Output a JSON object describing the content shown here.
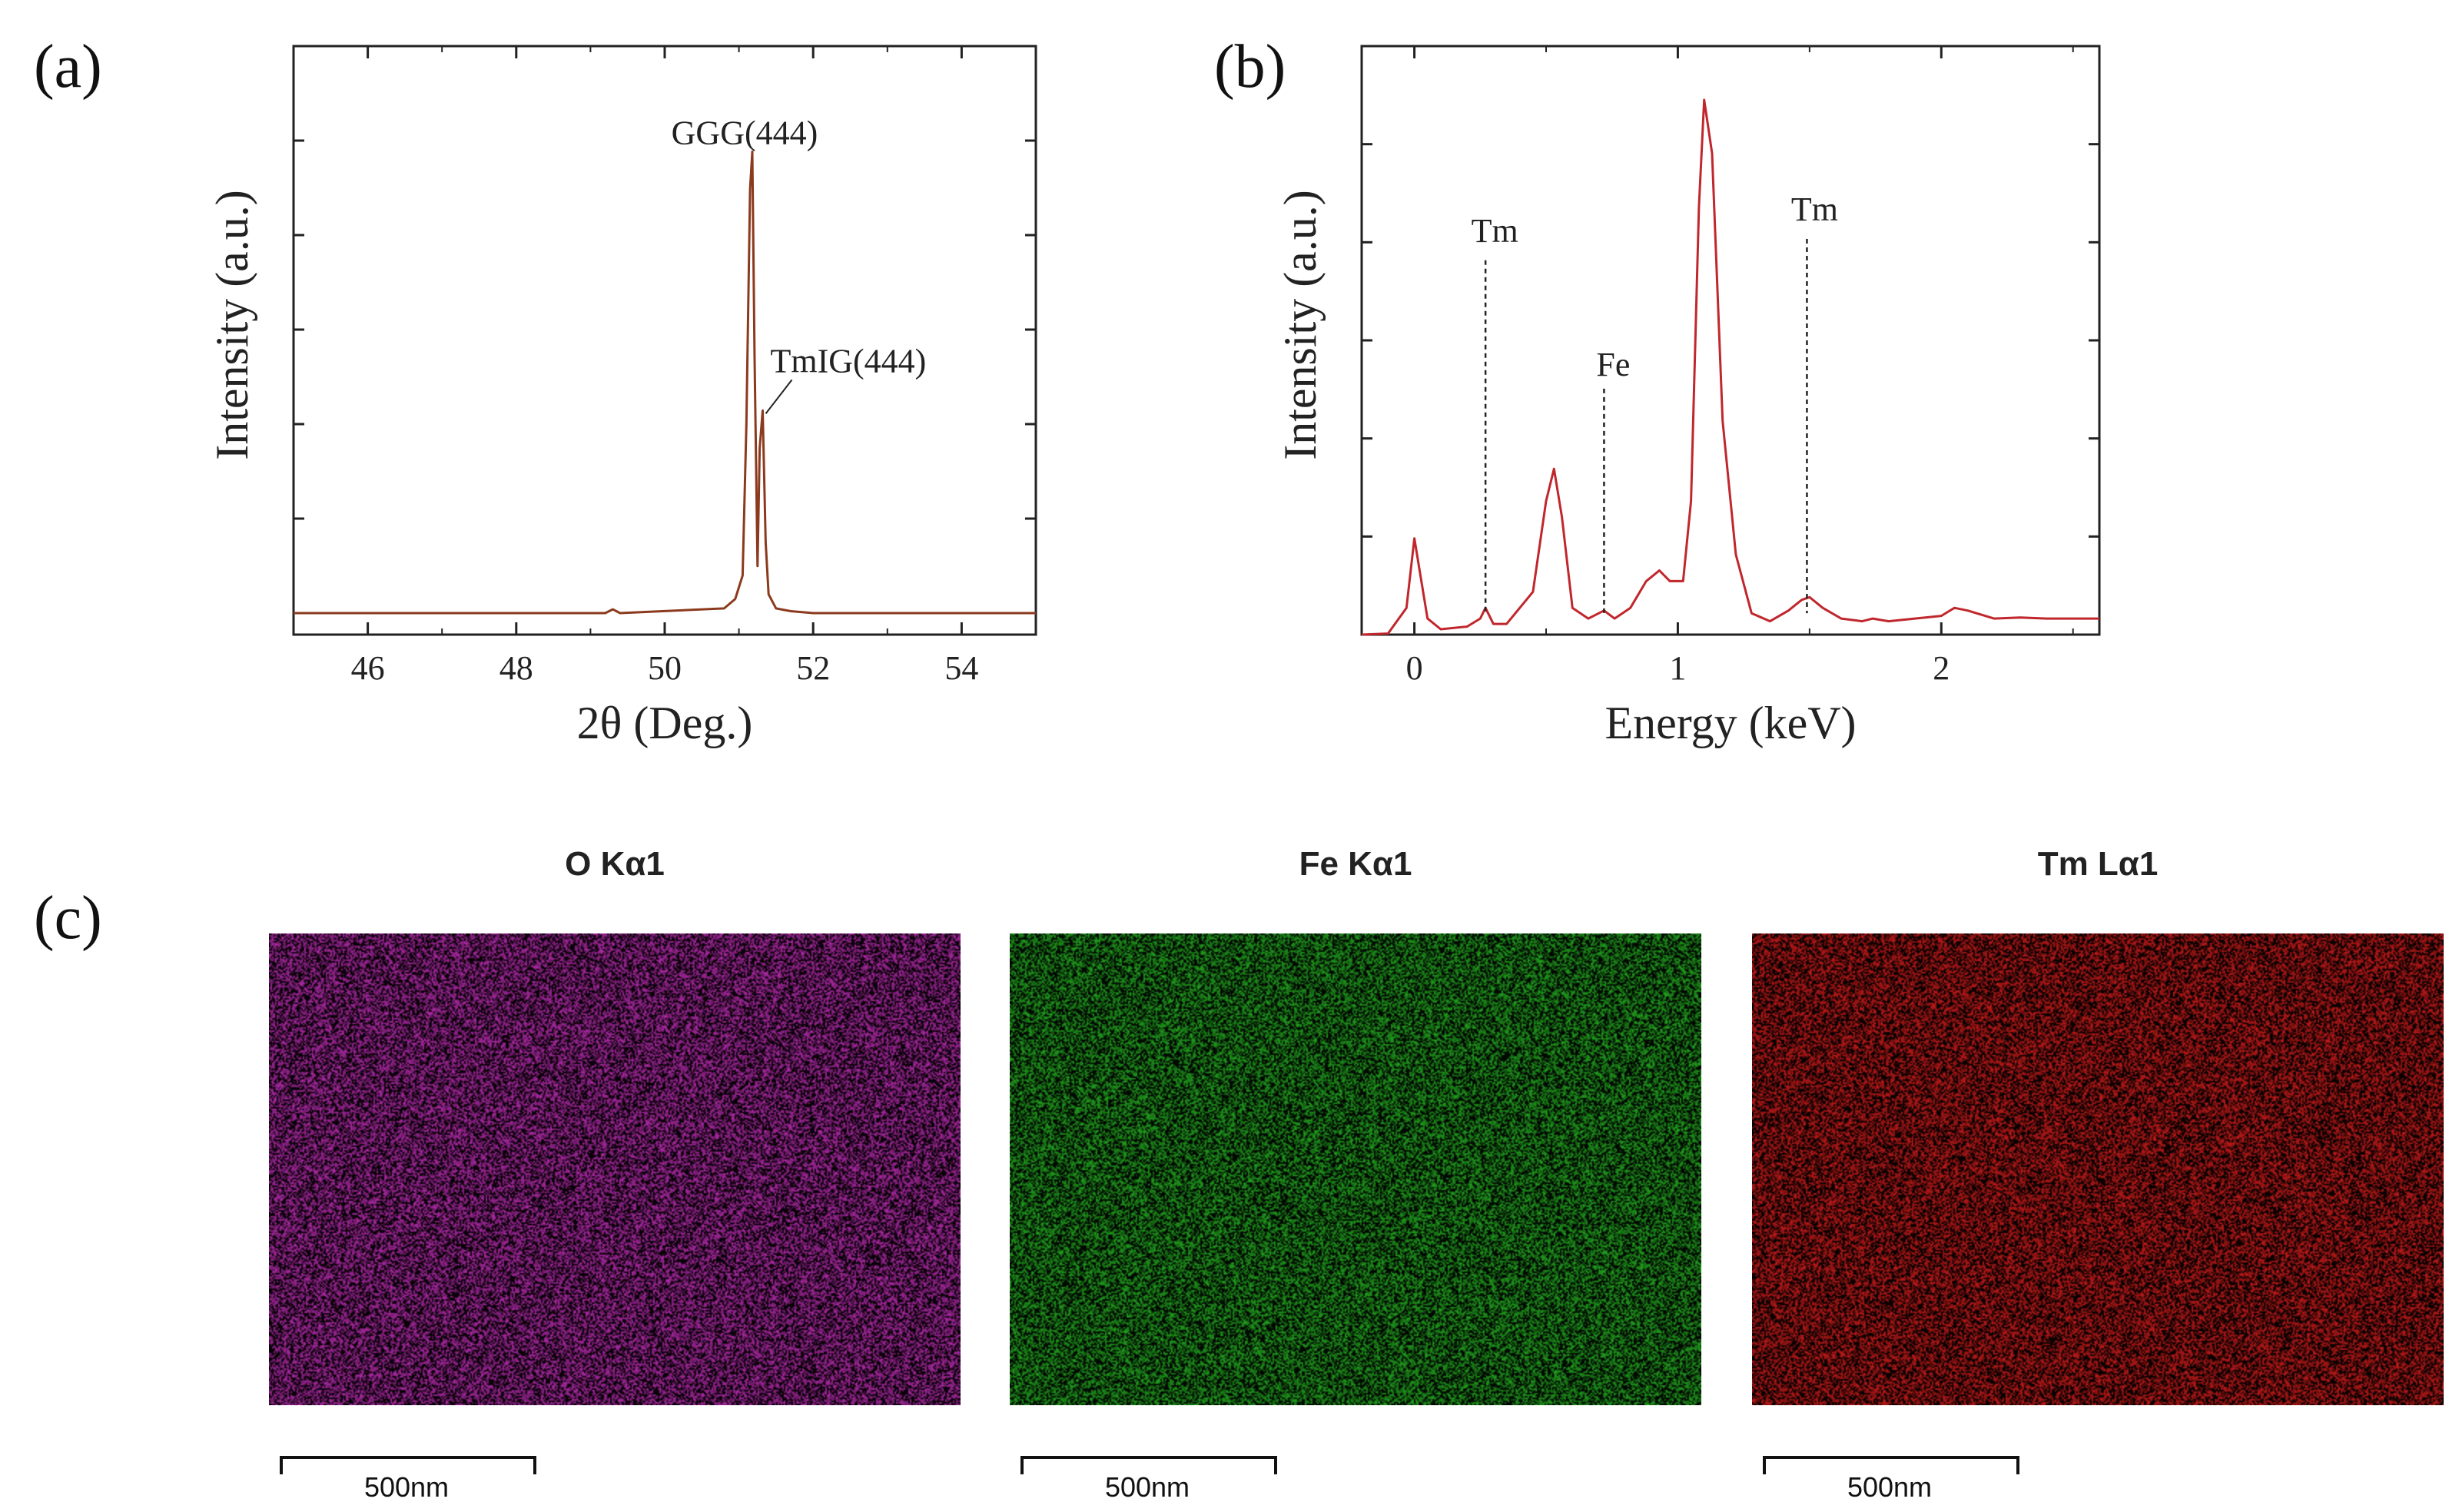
{
  "panels": {
    "a": "(a)",
    "b": "(b)",
    "c": "(c)"
  },
  "chart_data": [
    {
      "type": "line",
      "panel": "(a)",
      "xlabel": "2θ (Deg.)",
      "ylabel": "Intensity (a.u.)",
      "xlim": [
        45,
        55
      ],
      "xticks": [
        46,
        48,
        50,
        52,
        54
      ],
      "y_tick_labels": false,
      "color": "#8b3a1e",
      "annotations": [
        {
          "text": "GGG(444)",
          "x": 51.18,
          "y": 0.98
        },
        {
          "text": "TmIG(444)",
          "x": 51.32,
          "y": 0.43
        }
      ],
      "series": [
        {
          "x": [
            45,
            49.2,
            49.3,
            49.4,
            50.8,
            50.95,
            51.05,
            51.1,
            51.15,
            51.18,
            51.21,
            51.25,
            51.28,
            51.32,
            51.36,
            51.4,
            51.5,
            51.7,
            52,
            55
          ],
          "y": [
            0.0,
            0.0,
            0.008,
            0.0,
            0.01,
            0.03,
            0.08,
            0.4,
            0.9,
            0.98,
            0.55,
            0.1,
            0.35,
            0.43,
            0.15,
            0.04,
            0.01,
            0.004,
            0.0,
            0.0
          ]
        }
      ]
    },
    {
      "type": "line",
      "panel": "(b)",
      "xlabel": "Energy (keV)",
      "ylabel": "Intensity (a.u.)",
      "xlim": [
        -0.2,
        2.6
      ],
      "xticks": [
        0,
        1,
        2
      ],
      "y_tick_labels": false,
      "color": "#c0272d",
      "annotations": [
        {
          "text": "Tm",
          "x": 0.27,
          "y": 0.72
        },
        {
          "text": "Fe",
          "x": 0.72,
          "y": 0.47
        },
        {
          "text": "Tm",
          "x": 1.49,
          "y": 0.76
        }
      ],
      "series": [
        {
          "x": [
            -0.2,
            -0.1,
            -0.03,
            0.0,
            0.02,
            0.05,
            0.1,
            0.2,
            0.25,
            0.27,
            0.3,
            0.35,
            0.45,
            0.5,
            0.53,
            0.56,
            0.6,
            0.66,
            0.7,
            0.72,
            0.76,
            0.82,
            0.88,
            0.93,
            0.97,
            1.02,
            1.05,
            1.08,
            1.1,
            1.13,
            1.17,
            1.22,
            1.28,
            1.35,
            1.42,
            1.47,
            1.5,
            1.55,
            1.62,
            1.7,
            1.74,
            1.8,
            1.9,
            2.0,
            2.05,
            2.1,
            2.2,
            2.3,
            2.4,
            2.6
          ],
          "y": [
            0.0,
            0.002,
            0.05,
            0.18,
            0.12,
            0.03,
            0.01,
            0.015,
            0.03,
            0.05,
            0.02,
            0.02,
            0.08,
            0.25,
            0.31,
            0.22,
            0.05,
            0.03,
            0.04,
            0.045,
            0.03,
            0.05,
            0.1,
            0.12,
            0.1,
            0.1,
            0.25,
            0.8,
            1.0,
            0.9,
            0.4,
            0.15,
            0.04,
            0.025,
            0.045,
            0.065,
            0.07,
            0.05,
            0.03,
            0.025,
            0.03,
            0.025,
            0.03,
            0.035,
            0.05,
            0.045,
            0.03,
            0.032,
            0.03,
            0.03
          ]
        }
      ]
    }
  ],
  "ref_lines_b": [
    {
      "x": 0.27,
      "y_top": 0.7
    },
    {
      "x": 0.72,
      "y_top": 0.46
    },
    {
      "x": 1.49,
      "y_top": 0.74
    }
  ],
  "maps": [
    {
      "title": "O Kα1",
      "color": "#b02aa8",
      "scale": "500nm"
    },
    {
      "title": "Fe Kα1",
      "color": "#22a31f",
      "scale": "500nm"
    },
    {
      "title": "Tm Lα1",
      "color": "#c41a1a",
      "scale": "500nm"
    }
  ]
}
